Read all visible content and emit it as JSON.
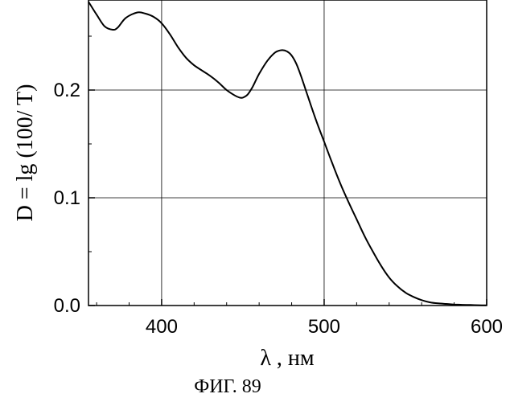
{
  "chart_data": {
    "type": "line",
    "title": "",
    "xlabel": "λ , нм",
    "ylabel": "D = lg (100/ T)",
    "caption": "ФИГ. 89",
    "xlim": [
      355,
      600
    ],
    "ylim": [
      0,
      0.28
    ],
    "x_ticks": [
      "400",
      "500",
      "600"
    ],
    "x_tick_values": [
      400,
      500,
      600
    ],
    "y_ticks": [
      "0.0",
      "0.1",
      "0.2"
    ],
    "y_tick_values": [
      0,
      0.1,
      0.2
    ],
    "grid": true,
    "series": [
      {
        "x": [
          355,
          360,
          365,
          370,
          373,
          378,
          385,
          390,
          395,
          400,
          405,
          410,
          415,
          420,
          425,
          430,
          435,
          440,
          445,
          448,
          450,
          453,
          456,
          460,
          465,
          470,
          474,
          477,
          480,
          483,
          486,
          490,
          495,
          500,
          505,
          510,
          515,
          520,
          525,
          530,
          535,
          540,
          545,
          550,
          555,
          560,
          565,
          570,
          575,
          580,
          585,
          590,
          595,
          600
        ],
        "y": [
          0.282,
          0.27,
          0.259,
          0.256,
          0.258,
          0.267,
          0.272,
          0.271,
          0.268,
          0.262,
          0.252,
          0.24,
          0.23,
          0.223,
          0.218,
          0.213,
          0.207,
          0.2,
          0.195,
          0.193,
          0.193,
          0.196,
          0.203,
          0.215,
          0.227,
          0.235,
          0.237,
          0.236,
          0.232,
          0.224,
          0.212,
          0.194,
          0.172,
          0.152,
          0.132,
          0.113,
          0.096,
          0.08,
          0.064,
          0.05,
          0.037,
          0.026,
          0.018,
          0.012,
          0.008,
          0.005,
          0.003,
          0.002,
          0.0015,
          0.001,
          0.0007,
          0.0005,
          0.0003,
          0.0002
        ]
      }
    ]
  }
}
